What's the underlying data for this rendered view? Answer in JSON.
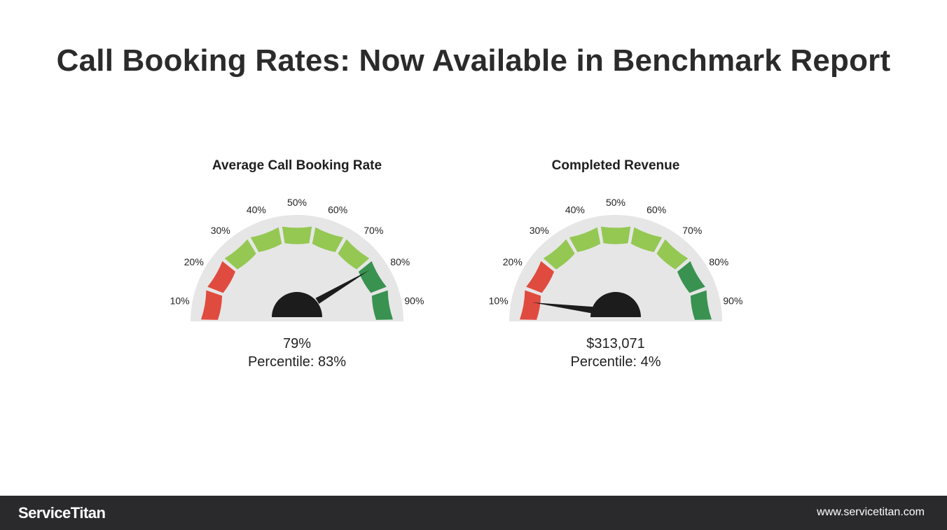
{
  "page": {
    "title": "Call Booking Rates: Now Available in Benchmark Report"
  },
  "gauges": [
    {
      "title": "Average Call Booking Rate",
      "value": "79%",
      "percentile_label": "Percentile: 83%",
      "percentile": 83,
      "ticks": [
        "10%",
        "20%",
        "30%",
        "40%",
        "50%",
        "60%",
        "70%",
        "80%",
        "90%"
      ]
    },
    {
      "title": "Completed Revenue",
      "value": "$313,071",
      "percentile_label": "Percentile: 4%",
      "percentile": 4,
      "ticks": [
        "10%",
        "20%",
        "30%",
        "40%",
        "50%",
        "60%",
        "70%",
        "80%",
        "90%"
      ]
    }
  ],
  "colors": {
    "red": "#e04b3f",
    "light_green": "#94c853",
    "dark_green": "#3a9250",
    "dial_bg": "#e6e6e6",
    "needle": "#1c1c1c",
    "footer_bg": "#2a2a2c"
  },
  "footer": {
    "logo": "ServiceTitan",
    "url": "www.servicetitan.com"
  }
}
